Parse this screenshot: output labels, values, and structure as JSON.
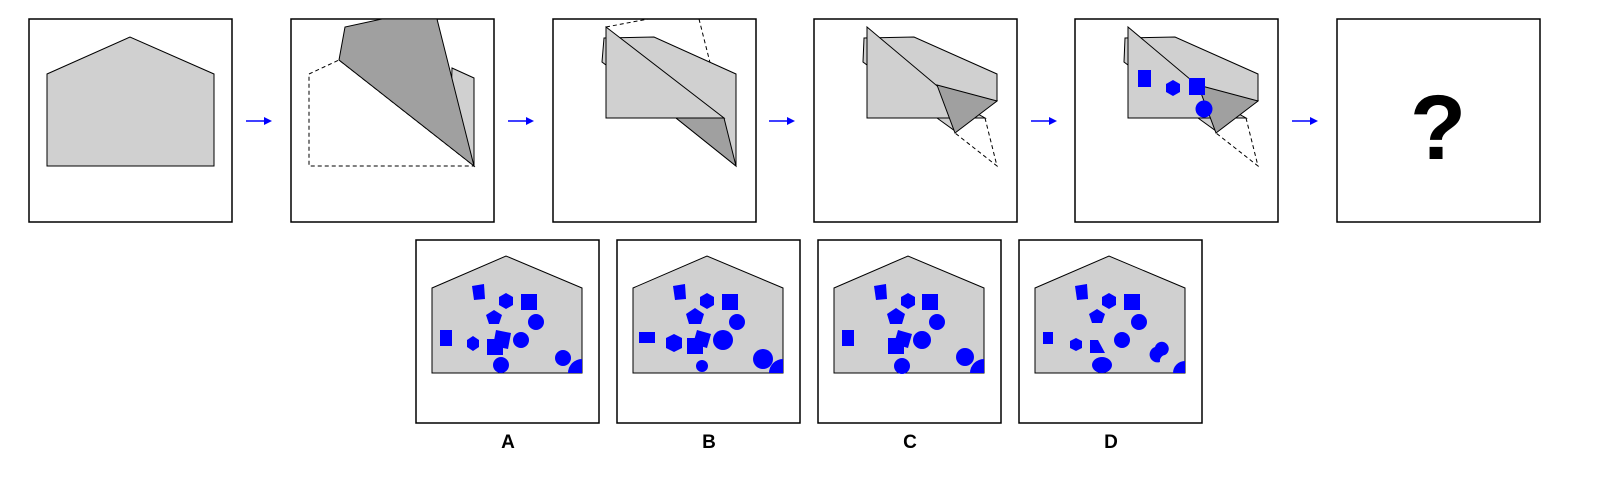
{
  "puzzle": {
    "question_mark": "?",
    "options": [
      {
        "label": "A"
      },
      {
        "label": "B"
      },
      {
        "label": "C"
      },
      {
        "label": "D"
      }
    ]
  },
  "colors": {
    "paper": "#d0d0d0",
    "paper_dark": "#a0a0a0",
    "hole": "#0000ff",
    "arrow": "#0000ff",
    "frame": "#000000"
  }
}
